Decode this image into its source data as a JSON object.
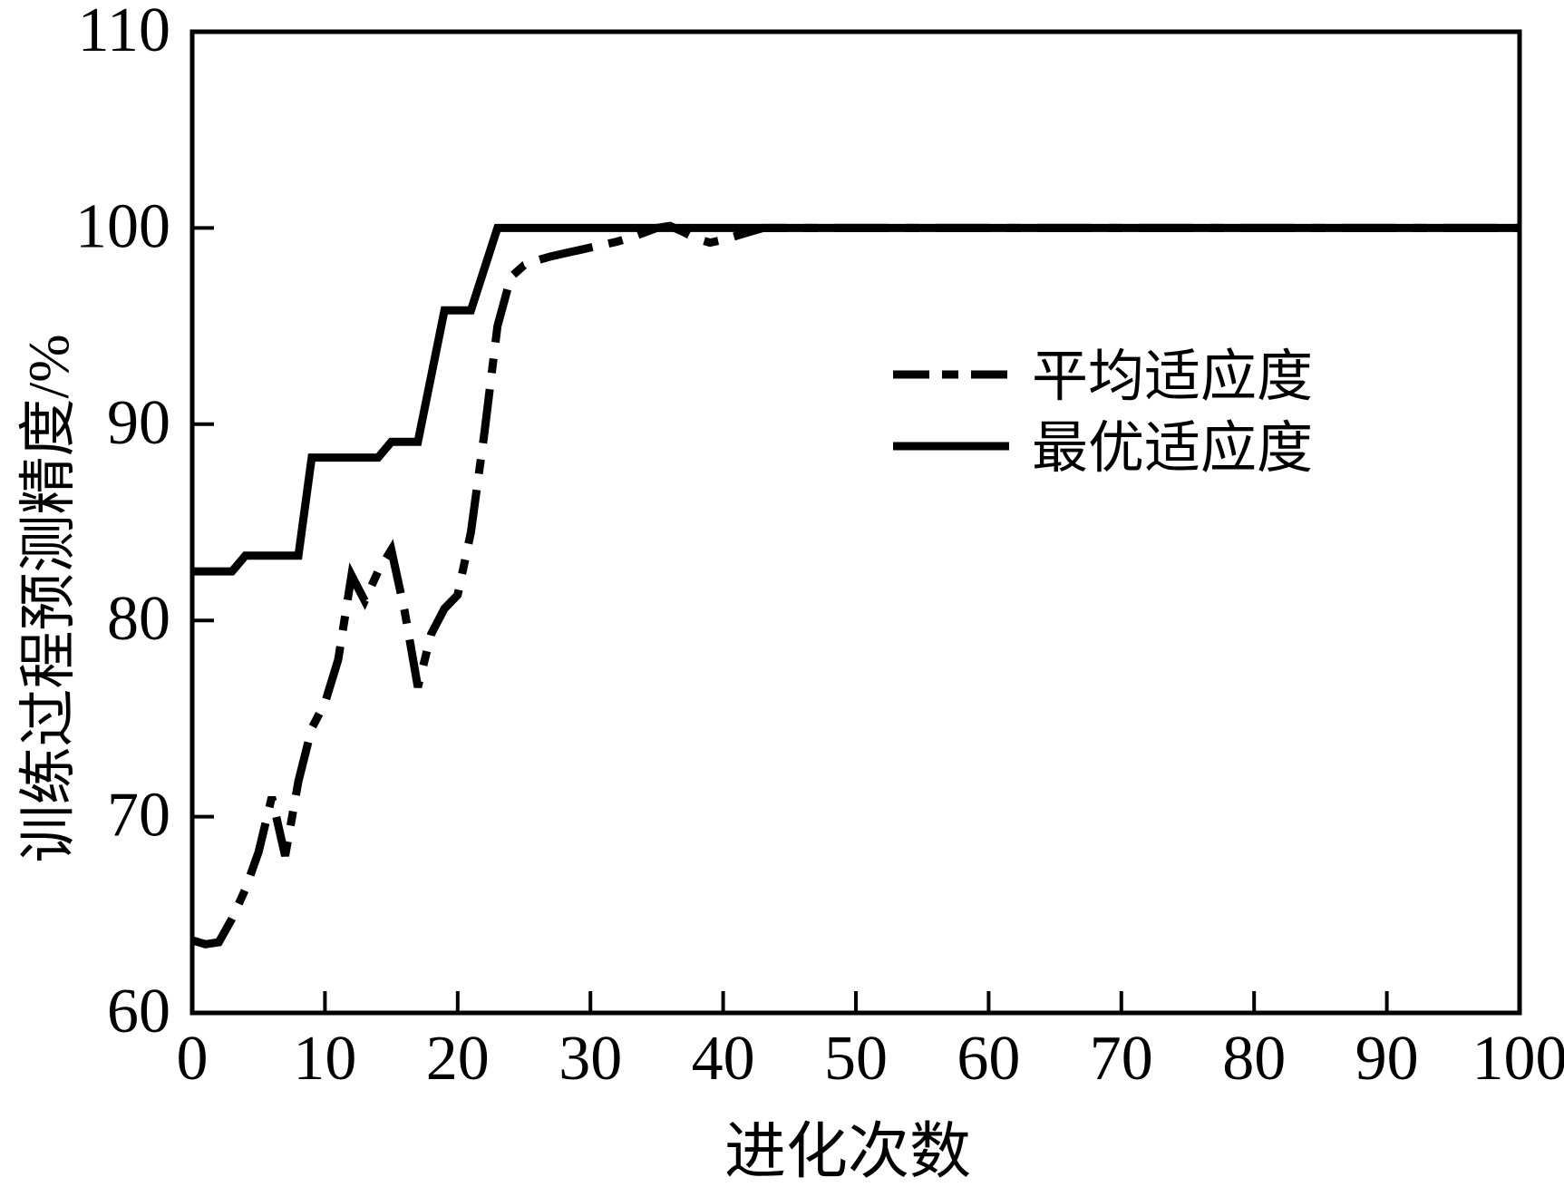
{
  "figure": {
    "kind": "scientific-line-chart",
    "background_color": "#ffffff",
    "foreground_color": "#000000"
  },
  "chart_data": {
    "type": "line",
    "title": "",
    "xlabel": "进化次数",
    "ylabel": "训练过程预测精度/%",
    "xlim": [
      0,
      100
    ],
    "ylim": [
      60,
      110
    ],
    "x_ticks": [
      0,
      10,
      20,
      30,
      40,
      50,
      60,
      70,
      80,
      90,
      100
    ],
    "y_ticks": [
      60,
      70,
      80,
      90,
      100,
      110
    ],
    "grid": false,
    "frame": "box",
    "legend_position": "inside-upper-middle",
    "series": [
      {
        "key": "average-fitness",
        "name": "平均适应度",
        "line_style": "dash-dot",
        "color": "#000000",
        "points": [
          [
            0,
            63.7
          ],
          [
            1,
            63.5
          ],
          [
            2,
            63.6
          ],
          [
            3,
            64.8
          ],
          [
            4,
            66.3
          ],
          [
            5,
            68.2
          ],
          [
            6,
            71.0
          ],
          [
            7,
            68.0
          ],
          [
            8,
            71.8
          ],
          [
            9,
            74.5
          ],
          [
            10,
            75.8
          ],
          [
            11,
            78.0
          ],
          [
            12,
            82.3
          ],
          [
            13,
            81.0
          ],
          [
            14,
            82.5
          ],
          [
            15,
            83.6
          ],
          [
            16,
            80.5
          ],
          [
            17,
            76.6
          ],
          [
            18,
            79.3
          ],
          [
            19,
            80.6
          ],
          [
            20,
            81.3
          ],
          [
            21,
            84.5
          ],
          [
            22,
            89.5
          ],
          [
            23,
            95.0
          ],
          [
            24,
            97.5
          ],
          [
            25,
            98.1
          ],
          [
            26,
            98.35
          ],
          [
            27,
            98.55
          ],
          [
            28,
            98.7
          ],
          [
            29,
            98.85
          ],
          [
            30,
            99.0
          ],
          [
            31,
            99.15
          ],
          [
            32,
            99.3
          ],
          [
            33,
            99.5
          ],
          [
            34,
            99.75
          ],
          [
            35,
            100.0
          ],
          [
            36,
            100.1
          ],
          [
            37,
            99.8
          ],
          [
            38,
            99.45
          ],
          [
            39,
            99.25
          ],
          [
            40,
            99.4
          ],
          [
            41,
            99.6
          ],
          [
            42,
            99.8
          ],
          [
            43,
            100.0
          ],
          [
            50,
            100.0
          ],
          [
            60,
            100.0
          ],
          [
            70,
            100.0
          ],
          [
            80,
            100.0
          ],
          [
            90,
            100.0
          ],
          [
            100,
            100.0
          ]
        ]
      },
      {
        "key": "best-fitness",
        "name": "最优适应度",
        "line_style": "solid",
        "color": "#000000",
        "points": [
          [
            0,
            82.5
          ],
          [
            3,
            82.5
          ],
          [
            4,
            83.3
          ],
          [
            8,
            83.3
          ],
          [
            9,
            88.3
          ],
          [
            14,
            88.3
          ],
          [
            15,
            89.1
          ],
          [
            17,
            89.1
          ],
          [
            19,
            95.8
          ],
          [
            21,
            95.8
          ],
          [
            23,
            100.0
          ],
          [
            100,
            100.0
          ]
        ]
      }
    ]
  }
}
